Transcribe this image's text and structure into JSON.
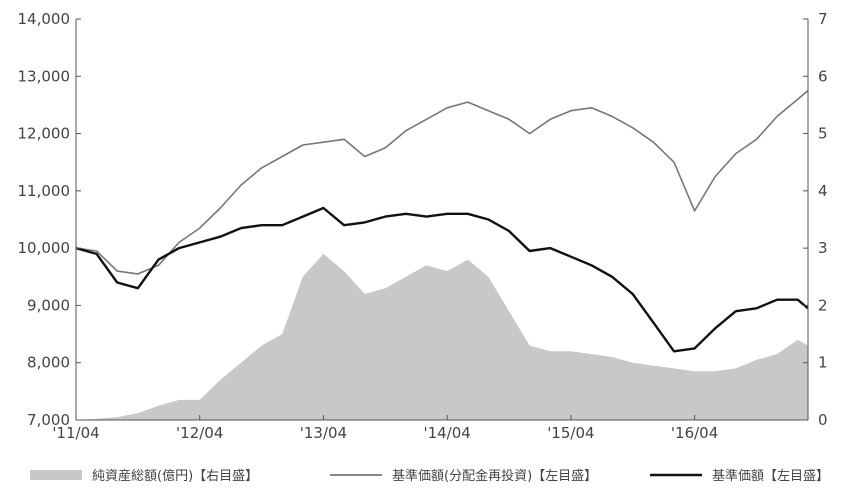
{
  "chart_data": {
    "type": "line",
    "title": "",
    "x_ticks": [
      "'11/04",
      "'12/04",
      "'13/04",
      "'14/04",
      "'15/04",
      "'16/04"
    ],
    "x_range": [
      "2011-04",
      "2017-03"
    ],
    "left_axis": {
      "range": [
        7000,
        14000
      ],
      "ticks": [
        "7,000",
        "8,000",
        "9,000",
        "10,000",
        "11,000",
        "12,000",
        "13,000",
        "14,000"
      ]
    },
    "right_axis": {
      "range": [
        0,
        7
      ],
      "ticks": [
        "0",
        "1",
        "2",
        "3",
        "4",
        "5",
        "6",
        "7"
      ]
    },
    "grid": false,
    "legend_position": "bottom",
    "x": [
      "2011-04",
      "2011-06",
      "2011-08",
      "2011-10",
      "2011-12",
      "2012-02",
      "2012-04",
      "2012-06",
      "2012-08",
      "2012-10",
      "2012-12",
      "2013-02",
      "2013-04",
      "2013-06",
      "2013-08",
      "2013-10",
      "2013-12",
      "2014-02",
      "2014-04",
      "2014-06",
      "2014-08",
      "2014-10",
      "2014-12",
      "2015-02",
      "2015-04",
      "2015-06",
      "2015-08",
      "2015-10",
      "2015-12",
      "2016-02",
      "2016-04",
      "2016-06",
      "2016-08",
      "2016-10",
      "2016-12",
      "2017-02",
      "2017-03"
    ],
    "series": [
      {
        "name": "純資産総額(億円)【右目盛】",
        "type": "area",
        "axis": "right",
        "color": "#c8c8c8",
        "values": [
          0.0,
          0.02,
          0.05,
          0.12,
          0.25,
          0.35,
          0.35,
          0.7,
          1.0,
          1.3,
          1.5,
          2.5,
          2.9,
          2.6,
          2.2,
          2.3,
          2.5,
          2.7,
          2.6,
          2.8,
          2.5,
          1.9,
          1.3,
          1.2,
          1.2,
          1.15,
          1.1,
          1.0,
          0.95,
          0.9,
          0.85,
          0.85,
          0.9,
          1.05,
          1.15,
          1.4,
          1.3
        ]
      },
      {
        "name": "基準価額(分配金再投資)【左目盛】",
        "type": "line",
        "axis": "left",
        "color": "#777777",
        "values": [
          10000,
          9950,
          9600,
          9550,
          9700,
          10100,
          10350,
          10700,
          11100,
          11400,
          11600,
          11800,
          11850,
          11900,
          11600,
          11750,
          12050,
          12250,
          12450,
          12550,
          12400,
          12250,
          12000,
          12250,
          12400,
          12450,
          12300,
          12100,
          11850,
          11500,
          10650,
          11250,
          11650,
          11900,
          12300,
          12600,
          12750
        ]
      },
      {
        "name": "基準価額【左目盛】",
        "type": "line",
        "axis": "left",
        "color": "#111111",
        "values": [
          10000,
          9900,
          9400,
          9300,
          9800,
          10000,
          10100,
          10200,
          10350,
          10400,
          10400,
          10550,
          10700,
          10400,
          10450,
          10550,
          10600,
          10550,
          10600,
          10600,
          10500,
          10300,
          9950,
          10000,
          9850,
          9700,
          9500,
          9200,
          8700,
          8200,
          8250,
          8600,
          8900,
          8950,
          9100,
          9100,
          8950
        ]
      }
    ]
  }
}
